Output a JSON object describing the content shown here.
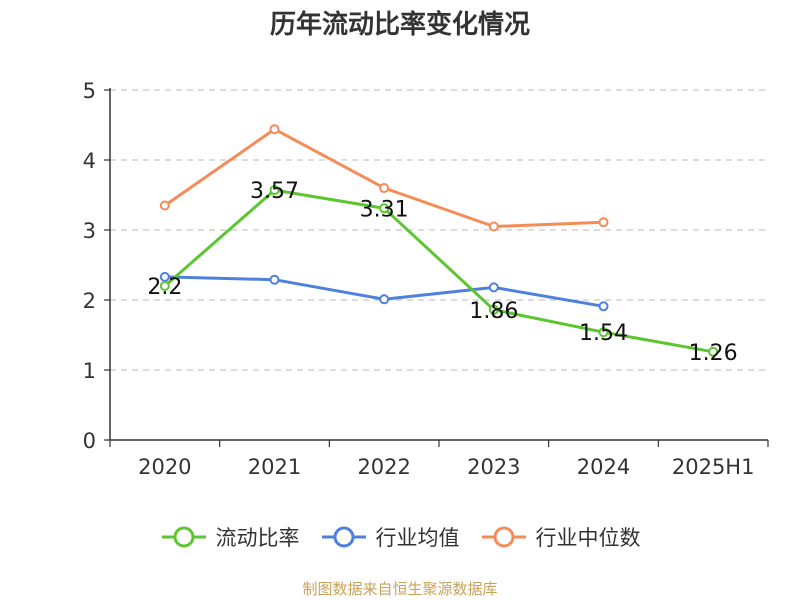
{
  "chart_data": {
    "type": "line",
    "title": "历年流动比率变化情况",
    "categories": [
      "2020",
      "2021",
      "2022",
      "2023",
      "2024",
      "2025H1"
    ],
    "ylim": [
      0,
      5
    ],
    "yticks": [
      "0",
      "1",
      "2",
      "3",
      "4",
      "5"
    ],
    "grid": true,
    "legend_position": "bottom",
    "series": [
      {
        "name": "流动比率",
        "color": "#5cc531",
        "values": [
          2.2,
          3.57,
          3.31,
          1.86,
          1.54,
          1.26
        ],
        "labels": [
          "2.2",
          "3.57",
          "3.31",
          "1.86",
          "1.54",
          "1.26"
        ]
      },
      {
        "name": "行业均值",
        "color": "#4f80dc",
        "values": [
          2.33,
          2.29,
          2.01,
          2.18,
          1.91,
          null
        ]
      },
      {
        "name": "行业中位数",
        "color": "#f58c58",
        "values": [
          3.35,
          4.44,
          3.6,
          3.05,
          3.11,
          null
        ]
      }
    ]
  },
  "source_text": "制图数据来自恒生聚源数据库"
}
